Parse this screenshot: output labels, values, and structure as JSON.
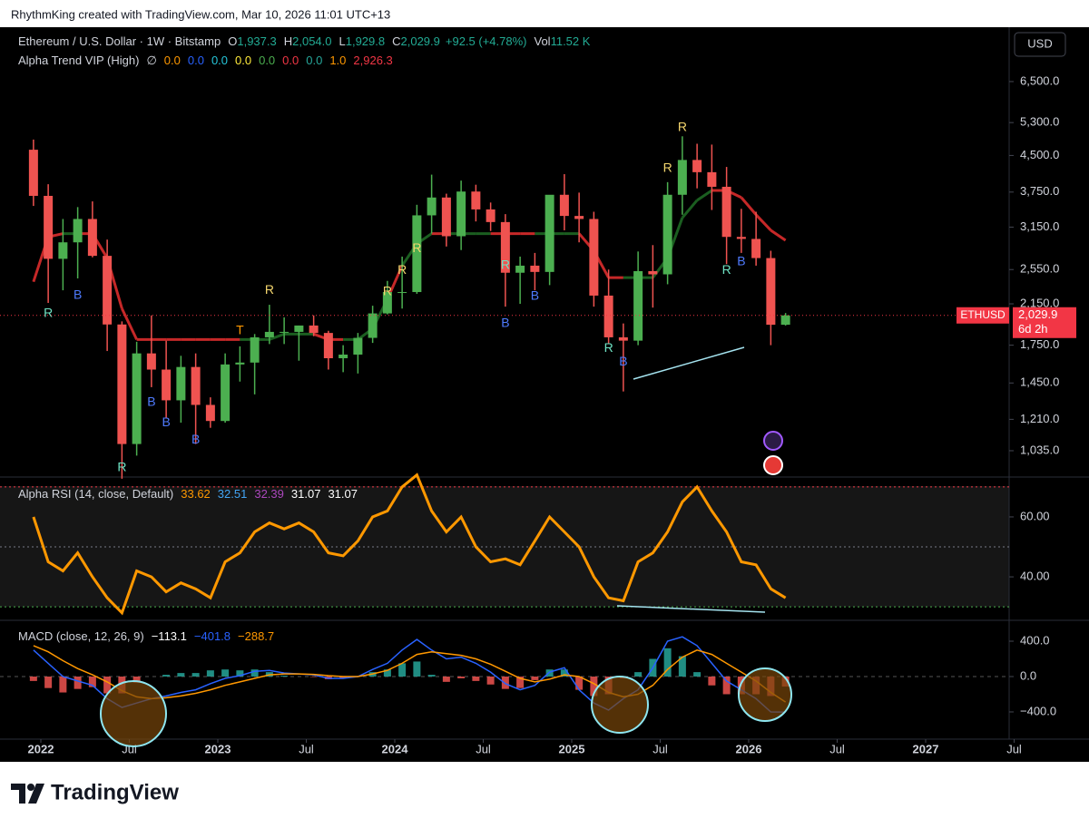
{
  "header": {
    "attribution": "RhythmKing created with TradingView.com, Mar 10, 2026 11:01 UTC+13"
  },
  "footer": {
    "logo": "TradingView"
  },
  "chart_data": [
    {
      "type": "candlestick",
      "title": "Ethereum / U.S. Dollar · 1W · Bitstamp",
      "legend_values": [
        {
          "key": "O",
          "value": "1,937.3"
        },
        {
          "key": "H",
          "value": "2,054.0"
        },
        {
          "key": "L",
          "value": "1,929.8"
        },
        {
          "key": "C",
          "value": "2,029.9"
        }
      ],
      "change": "+92.5 (+4.78%)",
      "volume_key": "Vol",
      "volume": "11.52 K",
      "currency": "USD",
      "log_scale": true,
      "grid": false,
      "up_color": "#4caf50",
      "down_color": "#ef5350",
      "ylim": [
        912,
        8520
      ],
      "yticks": [
        {
          "value": 6500,
          "label": "6,500.0"
        },
        {
          "value": 5300,
          "label": "5,300.0"
        },
        {
          "value": 4500,
          "label": "4,500.0"
        },
        {
          "value": 3750,
          "label": "3,750.0"
        },
        {
          "value": 3150,
          "label": "3,150.0"
        },
        {
          "value": 2550,
          "label": "2,550.0"
        },
        {
          "value": 2150,
          "label": "2,150.0"
        },
        {
          "value": 1750,
          "label": "1,750.0"
        },
        {
          "value": 1450,
          "label": "1,450.0"
        },
        {
          "value": 1210,
          "label": "1,210.0"
        },
        {
          "value": 1035,
          "label": "1,035.0"
        }
      ],
      "xticks": [
        {
          "value": "2022-01",
          "label": "2022"
        },
        {
          "value": "2022-07",
          "label": "Jul"
        },
        {
          "value": "2023-01",
          "label": "2023"
        },
        {
          "value": "2023-07",
          "label": "Jul"
        },
        {
          "value": "2024-01",
          "label": "2024"
        },
        {
          "value": "2024-07",
          "label": "Jul"
        },
        {
          "value": "2025-01",
          "label": "2025"
        },
        {
          "value": "2025-07",
          "label": "Jul"
        },
        {
          "value": "2026-01",
          "label": "2026"
        },
        {
          "value": "2026-07",
          "label": "Jul"
        },
        {
          "value": "2027-01",
          "label": "2027"
        },
        {
          "value": "2027-07",
          "label": "Jul"
        }
      ],
      "x": [
        "2021-12",
        "2022-01",
        "2022-02",
        "2022-03",
        "2022-04",
        "2022-05",
        "2022-06",
        "2022-07",
        "2022-08",
        "2022-09",
        "2022-10",
        "2022-11",
        "2022-12",
        "2023-01",
        "2023-02",
        "2023-03",
        "2023-04",
        "2023-05",
        "2023-06",
        "2023-07",
        "2023-08",
        "2023-09",
        "2023-10",
        "2023-11",
        "2023-12",
        "2024-01",
        "2024-02",
        "2024-03",
        "2024-04",
        "2024-05",
        "2024-06",
        "2024-07",
        "2024-08",
        "2024-09",
        "2024-10",
        "2024-11",
        "2024-12",
        "2025-01",
        "2025-02",
        "2025-03",
        "2025-04",
        "2025-05",
        "2025-06",
        "2025-07",
        "2025-08",
        "2025-09",
        "2025-10",
        "2025-11",
        "2025-12",
        "2026-01",
        "2026-02",
        "2026-03"
      ],
      "open": [
        4630,
        3680,
        2690,
        2920,
        3280,
        2730,
        1940,
        1070,
        1680,
        1550,
        1330,
        1570,
        1300,
        1200,
        1590,
        1605,
        1820,
        1870,
        1870,
        1930,
        1860,
        1640,
        1670,
        1815,
        2050,
        2280,
        2280,
        3340,
        3650,
        3010,
        3760,
        3440,
        3230,
        2510,
        2600,
        2520,
        3700,
        3330,
        3280,
        2240,
        1820,
        1790,
        2530,
        2490,
        3700,
        4400,
        4140,
        3850,
        3000,
        2970,
        2700,
        1937.3
      ],
      "high": [
        4870,
        3900,
        3280,
        3480,
        3580,
        2960,
        1970,
        1780,
        2030,
        1790,
        1660,
        1680,
        1350,
        1680,
        1740,
        1850,
        2140,
        2010,
        1930,
        2030,
        1880,
        1750,
        1860,
        2130,
        2410,
        2720,
        3520,
        4090,
        3720,
        3970,
        3890,
        3560,
        3360,
        2720,
        2770,
        3680,
        4100,
        3740,
        3400,
        2550,
        1950,
        2790,
        2880,
        3940,
        4950,
        4770,
        4750,
        4250,
        3450,
        3400,
        2800,
        2054
      ],
      "low": [
        3500,
        2160,
        2300,
        2440,
        2710,
        1700,
        900,
        1010,
        1420,
        1220,
        1190,
        1070,
        1160,
        1190,
        1460,
        1370,
        1760,
        1760,
        1620,
        1830,
        1550,
        1530,
        1520,
        1770,
        2040,
        2100,
        2260,
        3050,
        2860,
        2810,
        3240,
        3090,
        2120,
        2150,
        2300,
        2360,
        3100,
        2920,
        2120,
        1760,
        1390,
        1750,
        2110,
        2370,
        3350,
        3820,
        3430,
        2620,
        2770,
        2600,
        1750,
        1929.8
      ],
      "close": [
        3680,
        2690,
        2920,
        3280,
        2730,
        1940,
        1070,
        1680,
        1550,
        1330,
        1570,
        1300,
        1200,
        1590,
        1605,
        1820,
        1870,
        1870,
        1930,
        1860,
        1640,
        1670,
        1815,
        2050,
        2280,
        2280,
        3340,
        3650,
        3010,
        3760,
        3440,
        3230,
        2510,
        2600,
        2520,
        3700,
        3330,
        3280,
        2240,
        1820,
        1790,
        2530,
        2490,
        3700,
        4400,
        4140,
        3850,
        3000,
        2970,
        2700,
        1937.3,
        2029.9
      ],
      "indicator": {
        "name": "Alpha Trend VIP (High)",
        "symbol": "∅",
        "values": [
          {
            "text": "0.0",
            "color": "#ff9800"
          },
          {
            "text": "0.0",
            "color": "#2962ff"
          },
          {
            "text": "0.0",
            "color": "#26c6da"
          },
          {
            "text": "0.0",
            "color": "#ffeb3b"
          },
          {
            "text": "0.0",
            "color": "#4caf50"
          },
          {
            "text": "0.0",
            "color": "#f23645"
          },
          {
            "text": "0.0",
            "color": "#26a69a"
          },
          {
            "text": "1.0",
            "color": "#ff9800"
          },
          {
            "text": "2,926.3",
            "color": "#f23645"
          }
        ],
        "up_color": "#1b5e20",
        "down_color": "#c62828",
        "line": [
          2400,
          3000,
          3050,
          3050,
          3050,
          2700,
          2100,
          1800,
          1800,
          1800,
          1800,
          1800,
          1800,
          1800,
          1800,
          1800,
          1800,
          1850,
          1850,
          1850,
          1800,
          1800,
          1800,
          1900,
          2200,
          2600,
          2900,
          3050,
          3050,
          3050,
          3050,
          3050,
          3050,
          3050,
          3050,
          3050,
          3050,
          3050,
          2800,
          2450,
          2450,
          2450,
          2450,
          2700,
          3300,
          3600,
          3780,
          3780,
          3650,
          3350,
          3100,
          2950
        ]
      },
      "signals": [
        {
          "label": "R",
          "x": "2022-01",
          "price": 2050,
          "color": "#6fe3c4"
        },
        {
          "label": "B",
          "x": "2022-03",
          "price": 2240,
          "color": "#4f7bff"
        },
        {
          "label": "R",
          "x": "2022-06",
          "price": 950,
          "color": "#6fe3c4"
        },
        {
          "label": "B",
          "x": "2022-08",
          "price": 1315,
          "color": "#4f7bff"
        },
        {
          "label": "B",
          "x": "2022-09",
          "price": 1190,
          "color": "#4f7bff"
        },
        {
          "label": "B",
          "x": "2022-11",
          "price": 1090,
          "color": "#4f7bff"
        },
        {
          "label": "T",
          "x": "2023-02",
          "price": 1880,
          "color": "#ff9800"
        },
        {
          "label": "R",
          "x": "2023-04",
          "price": 2300,
          "color": "#f5d76e"
        },
        {
          "label": "R",
          "x": "2023-12",
          "price": 2280,
          "color": "#f5d76e"
        },
        {
          "label": "R",
          "x": "2024-01",
          "price": 2540,
          "color": "#f5d76e"
        },
        {
          "label": "R",
          "x": "2024-02",
          "price": 2830,
          "color": "#f5d76e"
        },
        {
          "label": "R",
          "x": "2024-08",
          "price": 2600,
          "color": "#6fe3c4"
        },
        {
          "label": "B",
          "x": "2024-08",
          "price": 1950,
          "color": "#4f7bff"
        },
        {
          "label": "B",
          "x": "2024-10",
          "price": 2230,
          "color": "#4f7bff"
        },
        {
          "label": "R",
          "x": "2025-03",
          "price": 1720,
          "color": "#6fe3c4"
        },
        {
          "label": "B",
          "x": "2025-04",
          "price": 1610,
          "color": "#4f7bff"
        },
        {
          "label": "R",
          "x": "2025-07",
          "price": 4220,
          "color": "#f5d76e"
        },
        {
          "label": "R",
          "x": "2025-08",
          "price": 5170,
          "color": "#f5d76e"
        },
        {
          "label": "R",
          "x": "2025-11",
          "price": 2540,
          "color": "#6fe3c4"
        },
        {
          "label": "B",
          "x": "2025-12",
          "price": 2650,
          "color": "#4f7bff"
        }
      ],
      "price_tag": {
        "symbol": "ETHUSD",
        "price": {
          "value": 2029.9,
          "label": "2,029.9"
        },
        "countdown": "6d 2h",
        "color": "#f23645"
      }
    },
    {
      "type": "line",
      "title": "Alpha RSI (14, close, Default)",
      "legend_values": [
        {
          "text": "33.62",
          "color": "#ff9800"
        },
        {
          "text": "32.51",
          "color": "#42a5f5"
        },
        {
          "text": "32.39",
          "color": "#ab47bc"
        },
        {
          "text": "31.07",
          "color": "#ffffff"
        },
        {
          "text": "31.07",
          "color": "#ffffff"
        }
      ],
      "ylim": [
        25.8,
        73
      ],
      "yticks": [
        {
          "value": 40,
          "label": "40.00"
        },
        {
          "value": 60,
          "label": "60.00"
        }
      ],
      "levels": [
        {
          "value": 70,
          "color": "#f23645"
        },
        {
          "value": 50,
          "color": "#787b86"
        },
        {
          "value": 30,
          "color": "#4caf50"
        }
      ],
      "series": [
        {
          "color": "#ff9800",
          "values": [
            60,
            45,
            42,
            48,
            40,
            33,
            28,
            42,
            40,
            35,
            38,
            36,
            33,
            45,
            48,
            55,
            58,
            56,
            58,
            55,
            48,
            47,
            52,
            60,
            62,
            70,
            74,
            62,
            55,
            60,
            50,
            45,
            46,
            44,
            52,
            60,
            55,
            50,
            40,
            33,
            32,
            45,
            48,
            55,
            65,
            70,
            62,
            55,
            45,
            44,
            36,
            33
          ]
        }
      ]
    },
    {
      "type": "macd",
      "title": "MACD (close, 12, 26, 9)",
      "legend_values": [
        {
          "text": "−113.1",
          "color": "#ffffff"
        },
        {
          "text": "−401.8",
          "color": "#2962ff"
        },
        {
          "text": "−288.7",
          "color": "#ff9800"
        }
      ],
      "ylim": [
        -708,
        626
      ],
      "yticks": [
        {
          "value": 400,
          "label": "400.0"
        },
        {
          "value": 0,
          "label": "0.0"
        },
        {
          "value": -400,
          "label": "−400.0"
        }
      ],
      "histogram": {
        "up_color": "#26a69a",
        "down_color": "#ef5350",
        "values": [
          -50,
          -130,
          -180,
          -140,
          -120,
          -190,
          -190,
          -70,
          0,
          20,
          40,
          40,
          70,
          80,
          70,
          80,
          50,
          10,
          0,
          -5,
          -30,
          -20,
          0,
          50,
          80,
          150,
          170,
          20,
          -60,
          -20,
          -50,
          -90,
          -140,
          -130,
          -40,
          80,
          80,
          -150,
          -220,
          -200,
          -20,
          50,
          200,
          320,
          230,
          50,
          -100,
          -200,
          -200,
          -200,
          -220,
          -113.1
        ]
      },
      "series": [
        {
          "color": "#2962ff",
          "values": [
            300,
            150,
            0,
            -50,
            -100,
            -250,
            -350,
            -300,
            -250,
            -220,
            -180,
            -150,
            -80,
            -20,
            10,
            60,
            70,
            40,
            30,
            20,
            -20,
            -20,
            0,
            80,
            150,
            300,
            420,
            300,
            200,
            220,
            150,
            50,
            -80,
            -150,
            -100,
            50,
            100,
            -150,
            -300,
            -380,
            -250,
            -150,
            100,
            400,
            450,
            350,
            150,
            -50,
            -150,
            -250,
            -400,
            -401.8
          ]
        },
        {
          "color": "#ff9800",
          "values": [
            350,
            280,
            180,
            90,
            20,
            -60,
            -160,
            -230,
            -250,
            -240,
            -220,
            -190,
            -150,
            -100,
            -60,
            -20,
            20,
            30,
            30,
            25,
            10,
            0,
            0,
            30,
            70,
            150,
            250,
            280,
            260,
            240,
            200,
            140,
            60,
            -20,
            -60,
            -30,
            20,
            0,
            -80,
            -180,
            -230,
            -200,
            -100,
            80,
            220,
            300,
            250,
            150,
            50,
            -50,
            -180,
            -288.7
          ]
        }
      ]
    }
  ]
}
